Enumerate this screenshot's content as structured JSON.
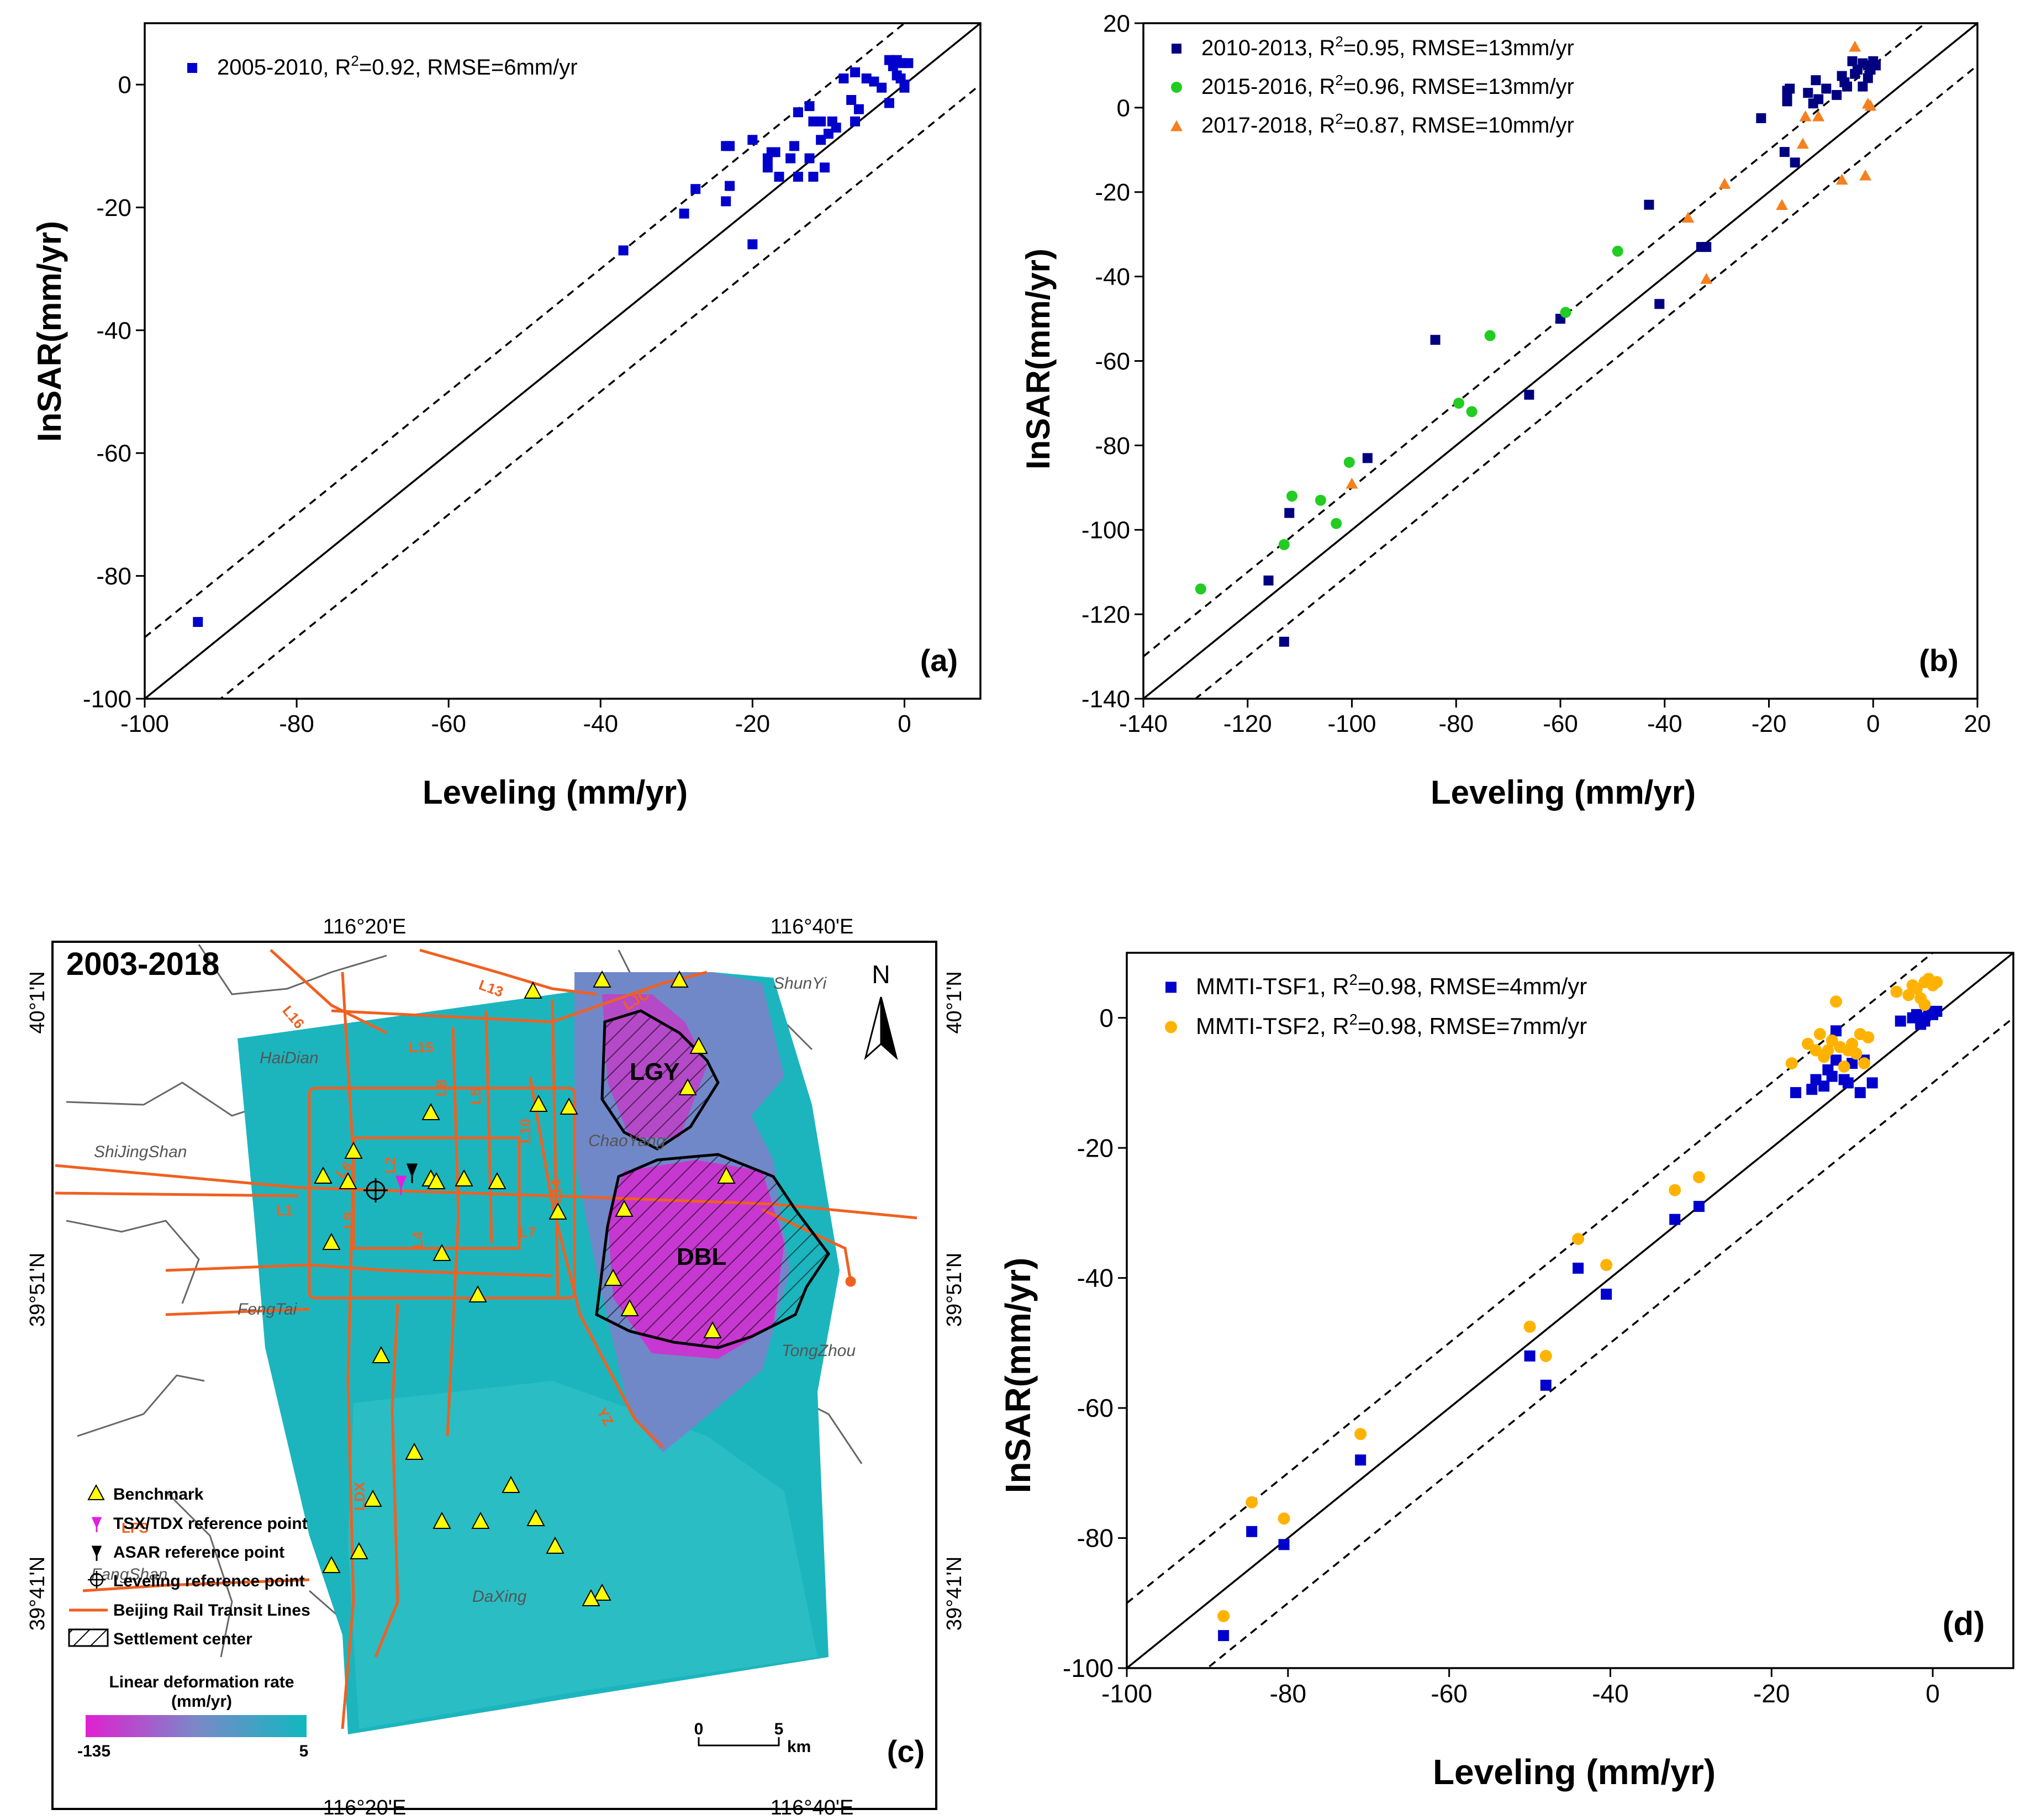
{
  "chart_data": [
    {
      "panel": "(a)",
      "type": "scatter",
      "xlabel": "Leveling (mm/yr)",
      "ylabel": "InSAR(mm/yr)",
      "xlim": [
        -100,
        10
      ],
      "ylim": [
        -100,
        10
      ],
      "xticks": [
        -100,
        -80,
        -60,
        -40,
        -20,
        0
      ],
      "yticks": [
        -100,
        -80,
        -60,
        -40,
        -20,
        0
      ],
      "reference_lines": [
        {
          "name": "1:1 line",
          "style": "solid",
          "offset": 0
        },
        {
          "name": "+10 mm/yr",
          "style": "dashed",
          "offset": 10
        },
        {
          "name": "-10 mm/yr",
          "style": "dashed",
          "offset": -10
        }
      ],
      "series": [
        {
          "name": "2005-2010, R²=0.92, RMSE=6mm/yr",
          "legend": {
            "pre": "2005-2010, R",
            "sup": "2",
            "post": "=0.92, RMSE=6mm/yr"
          },
          "marker": "square",
          "color": "#0000CC",
          "points": [
            [
              -93,
              -87.5
            ],
            [
              -37,
              -27
            ],
            [
              -29,
              -21
            ],
            [
              -27.5,
              -17
            ],
            [
              -23.5,
              -10
            ],
            [
              -23,
              -10
            ],
            [
              -23.5,
              -19
            ],
            [
              -23,
              -16.5
            ],
            [
              -20,
              -9
            ],
            [
              -20,
              -26
            ],
            [
              -18,
              -12
            ],
            [
              -17.5,
              -11
            ],
            [
              -18,
              -13.5
            ],
            [
              -17,
              -11
            ],
            [
              -16.5,
              -15
            ],
            [
              -15,
              -12
            ],
            [
              -14.5,
              -10
            ],
            [
              -14,
              -4.5
            ],
            [
              -14,
              -15
            ],
            [
              -12.5,
              -3.5
            ],
            [
              -12.5,
              -12
            ],
            [
              -12,
              -15
            ],
            [
              -12,
              -6
            ],
            [
              -11,
              -6
            ],
            [
              -11,
              -9
            ],
            [
              -10.5,
              -13.5
            ],
            [
              -10,
              -8
            ],
            [
              -9.5,
              -6
            ],
            [
              -9,
              -7
            ],
            [
              -8,
              1
            ],
            [
              -7,
              -2.5
            ],
            [
              -6.5,
              2
            ],
            [
              -6.5,
              -6
            ],
            [
              -6,
              -4
            ],
            [
              -5,
              1
            ],
            [
              -4,
              0.5
            ],
            [
              -3,
              -0.5
            ],
            [
              -2,
              4
            ],
            [
              -2,
              -3
            ],
            [
              -1.5,
              3
            ],
            [
              -1,
              1.5
            ],
            [
              -1,
              4
            ],
            [
              -0.5,
              3.5
            ],
            [
              -0.5,
              1
            ],
            [
              0,
              0
            ],
            [
              0.5,
              3.5
            ],
            [
              0,
              -0.5
            ]
          ]
        }
      ]
    },
    {
      "panel": "(b)",
      "type": "scatter",
      "xlabel": "Leveling (mm/yr)",
      "ylabel": "InSAR(mm/yr)",
      "xlim": [
        -140,
        20
      ],
      "ylim": [
        -140,
        20
      ],
      "xticks": [
        -140,
        -120,
        -100,
        -80,
        -60,
        -40,
        -20,
        0,
        20
      ],
      "yticks": [
        -140,
        -120,
        -100,
        -80,
        -60,
        -40,
        -20,
        0,
        20
      ],
      "reference_lines": [
        {
          "name": "1:1 line",
          "style": "solid",
          "offset": 0
        },
        {
          "name": "+10 mm/yr",
          "style": "dashed",
          "offset": 10
        },
        {
          "name": "-10 mm/yr",
          "style": "dashed",
          "offset": -10
        }
      ],
      "series": [
        {
          "name": "2010-2013, R²=0.95, RMSE=13mm/yr",
          "legend": {
            "pre": "2010-2013, R",
            "sup": "2",
            "post": "=0.95, RMSE=13mm/yr"
          },
          "marker": "square",
          "color": "#000080",
          "points": [
            [
              -116,
              -112
            ],
            [
              -113,
              -126.5
            ],
            [
              -112,
              -96
            ],
            [
              -97,
              -83
            ],
            [
              -84,
              -55
            ],
            [
              -66,
              -68
            ],
            [
              -60,
              -50
            ],
            [
              -43,
              -23
            ],
            [
              -41,
              -46.5
            ],
            [
              -33,
              -33
            ],
            [
              -32,
              -33
            ],
            [
              -21.5,
              -2.5
            ],
            [
              -17,
              -10.5
            ],
            [
              -16.5,
              3
            ],
            [
              -16.5,
              4
            ],
            [
              -16.5,
              1.5
            ],
            [
              -16,
              4.5
            ],
            [
              -15,
              -13
            ],
            [
              -12.5,
              3.5
            ],
            [
              -11.5,
              1
            ],
            [
              -11,
              6.5
            ],
            [
              -10.5,
              2
            ],
            [
              -9,
              4.5
            ],
            [
              -7,
              3
            ],
            [
              -6,
              7.5
            ],
            [
              -5.5,
              6
            ],
            [
              -5,
              5
            ],
            [
              -4,
              11
            ],
            [
              -3.5,
              8
            ],
            [
              -3,
              9
            ],
            [
              -2,
              10.5
            ],
            [
              -2,
              5
            ],
            [
              -1,
              10
            ],
            [
              -1,
              7
            ],
            [
              -0.5,
              9
            ],
            [
              0,
              11
            ],
            [
              0.5,
              10
            ]
          ]
        },
        {
          "name": "2015-2016, R²=0.96, RMSE=13mm/yr",
          "legend": {
            "pre": "2015-2016, R",
            "sup": "2",
            "post": "=0.96, RMSE=13mm/yr"
          },
          "marker": "circle",
          "color": "#22CC22",
          "points": [
            [
              -129,
              -114
            ],
            [
              -113,
              -103.5
            ],
            [
              -111.5,
              -92
            ],
            [
              -106,
              -93
            ],
            [
              -103,
              -98.5
            ],
            [
              -100.5,
              -84
            ],
            [
              -79.5,
              -70
            ],
            [
              -77,
              -72
            ],
            [
              -73.5,
              -54
            ],
            [
              -59,
              -48.5
            ],
            [
              -49,
              -34
            ]
          ]
        },
        {
          "name": "2017-2018, R²=0.87, RMSE=10mm/yr",
          "legend": {
            "pre": "2017-2018, R",
            "sup": "2",
            "post": "=0.87, RMSE=10mm/yr"
          },
          "marker": "triangle",
          "color": "#F58020",
          "points": [
            [
              -100,
              -89
            ],
            [
              -35.5,
              -26
            ],
            [
              -32,
              -40.5
            ],
            [
              -28.5,
              -18
            ],
            [
              -17.5,
              -23
            ],
            [
              -13.5,
              -8.5
            ],
            [
              -13,
              -2
            ],
            [
              -10.5,
              -2
            ],
            [
              -6,
              -17
            ],
            [
              -3.5,
              14.5
            ],
            [
              -1.5,
              -16
            ],
            [
              -1,
              1
            ],
            [
              -0.5,
              0.5
            ]
          ]
        }
      ]
    },
    {
      "panel": "(d)",
      "type": "scatter",
      "xlabel": "Leveling (mm/yr)",
      "ylabel": "InSAR(mm/yr)",
      "xlim": [
        -100,
        10
      ],
      "ylim": [
        -100,
        10
      ],
      "xticks": [
        -100,
        -80,
        -60,
        -40,
        -20,
        0
      ],
      "yticks": [
        -100,
        -80,
        -60,
        -40,
        -20,
        0
      ],
      "reference_lines": [
        {
          "name": "1:1 line",
          "style": "solid",
          "offset": 0
        },
        {
          "name": "+10 mm/yr",
          "style": "dashed",
          "offset": 10
        },
        {
          "name": "-10 mm/yr",
          "style": "dashed",
          "offset": -10
        }
      ],
      "series": [
        {
          "name": "MMTI-TSF1, R²=0.98, RMSE=4mm/yr",
          "legend": {
            "pre": "MMTI-TSF1, R",
            "sup": "2",
            "post": "=0.98, RMSE=4mm/yr"
          },
          "marker": "square",
          "color": "#0000CC",
          "points": [
            [
              -88,
              -95
            ],
            [
              -84.5,
              -79
            ],
            [
              -80.5,
              -81
            ],
            [
              -71,
              -68
            ],
            [
              -50,
              -52
            ],
            [
              -48,
              -56.5
            ],
            [
              -44,
              -38.5
            ],
            [
              -40.5,
              -42.5
            ],
            [
              -32,
              -31
            ],
            [
              -29,
              -29
            ],
            [
              -17,
              -11.5
            ],
            [
              -15,
              -11
            ],
            [
              -14.5,
              -9.5
            ],
            [
              -13.5,
              -10.5
            ],
            [
              -13,
              -8
            ],
            [
              -12.5,
              -9
            ],
            [
              -12,
              -6.5
            ],
            [
              -11,
              -9.5
            ],
            [
              -10.5,
              -10
            ],
            [
              -10,
              -7
            ],
            [
              -9,
              -11.5
            ],
            [
              -8.5,
              -6.5
            ],
            [
              -7.5,
              -10
            ],
            [
              -12,
              -2
            ],
            [
              -4,
              -0.5
            ],
            [
              -2.5,
              0
            ],
            [
              -2,
              0.5
            ],
            [
              -1.5,
              -1
            ],
            [
              -1,
              0
            ],
            [
              -0.5,
              1
            ],
            [
              0,
              0.5
            ],
            [
              0.5,
              1
            ],
            [
              -1,
              -0.5
            ]
          ]
        },
        {
          "name": "MMTI-TSF2, R²=0.98, RMSE=7mm/yr",
          "legend": {
            "pre": "MMTI-TSF2, R",
            "sup": "2",
            "post": "=0.98, RMSE=7mm/yr"
          },
          "marker": "circle",
          "color": "#FFB300",
          "points": [
            [
              -88,
              -92
            ],
            [
              -84.5,
              -74.5
            ],
            [
              -80.5,
              -77
            ],
            [
              -71,
              -64
            ],
            [
              -50,
              -47.5
            ],
            [
              -48,
              -52
            ],
            [
              -44,
              -34
            ],
            [
              -40.5,
              -38
            ],
            [
              -32,
              -26.5
            ],
            [
              -29,
              -24.5
            ],
            [
              -17.5,
              -7
            ],
            [
              -15.5,
              -4
            ],
            [
              -14.5,
              -5
            ],
            [
              -14,
              -2.5
            ],
            [
              -13.5,
              -6
            ],
            [
              -13,
              -5
            ],
            [
              -12.5,
              -3.5
            ],
            [
              -12,
              2.5
            ],
            [
              -11.5,
              -4.5
            ],
            [
              -11,
              -7.5
            ],
            [
              -10.5,
              -5
            ],
            [
              -10,
              -4
            ],
            [
              -9.5,
              -5.5
            ],
            [
              -9,
              -2.5
            ],
            [
              -8.5,
              -7
            ],
            [
              -8,
              -3
            ],
            [
              -4.5,
              4
            ],
            [
              -3,
              3.5
            ],
            [
              -2.5,
              5
            ],
            [
              -2,
              4.5
            ],
            [
              -1.5,
              3
            ],
            [
              -1,
              5.5
            ],
            [
              -0.5,
              6
            ],
            [
              0,
              5
            ],
            [
              0.5,
              5.5
            ],
            [
              -1,
              2
            ]
          ]
        }
      ]
    }
  ],
  "map_panel": {
    "panel_label": "(c)",
    "period": "2003-2018",
    "north_label": "N",
    "top_lon_ticks": [
      "116°20'E",
      "116°40'E"
    ],
    "bottom_lon_ticks": [
      "116°20'E",
      "116°40'E"
    ],
    "left_lat_ticks": [
      "40°1'N",
      "39°51'N",
      "39°41'N"
    ],
    "right_lat_ticks": [
      "40°1'N",
      "39°51'N",
      "39°41'N"
    ],
    "districts": [
      "ShunYi",
      "HaiDian",
      "ShiJingShan",
      "ChaoYang",
      "FengTai",
      "TongZhou",
      "FangShan",
      "DaXing"
    ],
    "line_labels": [
      "L13",
      "L16",
      "L15",
      "L8",
      "L5",
      "L10",
      "L6",
      "L2",
      "L1",
      "L9",
      "L4",
      "L14",
      "L7",
      "YZ",
      "LDX",
      "LFS",
      "LJC"
    ],
    "settlement_centers": [
      "LGY",
      "DBL"
    ],
    "scale_bar": {
      "start": "0",
      "end": "5",
      "unit": "km"
    },
    "legend": [
      {
        "label": "Benchmark",
        "symbol": "triangle",
        "color": "#FFFF00"
      },
      {
        "label": "TSX/TDX reference point",
        "symbol": "pin",
        "color": "#E020E0"
      },
      {
        "label": "ASAR reference point",
        "symbol": "pin",
        "color": "#000000"
      },
      {
        "label": "Leveling reference point",
        "symbol": "crosshair",
        "color": "#000000"
      },
      {
        "label": "Beijing Rail Transit Lines",
        "symbol": "line",
        "color": "#F06020"
      },
      {
        "label": "Settlement center",
        "symbol": "hatch",
        "color": "#000000"
      }
    ],
    "colorbar": {
      "title_line1": "Linear deformation rate",
      "title_line2": "(mm/yr)",
      "min_label": "-135",
      "max_label": "5",
      "min_color": "#E020D0",
      "max_color": "#10B8C0"
    }
  }
}
